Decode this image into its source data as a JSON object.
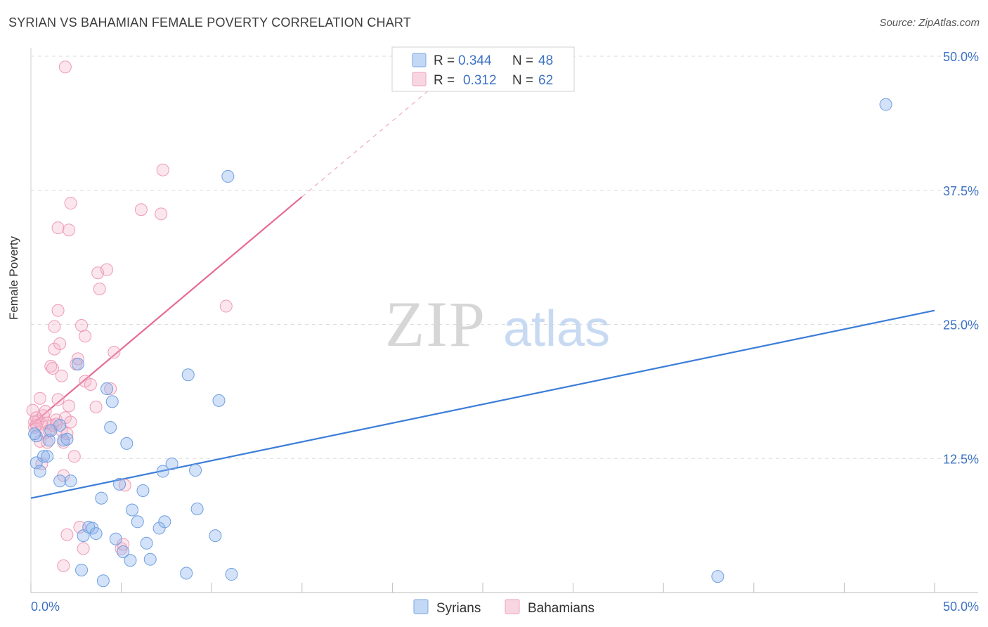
{
  "header": {
    "title": "SYRIAN VS BAHAMIAN FEMALE POVERTY CORRELATION CHART",
    "source": "Source: ZipAtlas.com"
  },
  "watermark": {
    "zip": "ZIP",
    "atlas": "atlas"
  },
  "legend_top": {
    "rows": [
      {
        "r_label": "R =",
        "r_value": "0.344",
        "n_label": "N =",
        "n_value": "48",
        "color": "#7aa9e6"
      },
      {
        "r_label": "R =",
        "r_value": "0.312",
        "n_label": "N =",
        "n_value": "62",
        "color": "#f0a3bc"
      }
    ]
  },
  "legend_bottom": {
    "items": [
      {
        "label": "Syrians",
        "color": "#7aa9e6"
      },
      {
        "label": "Bahamians",
        "color": "#f0a3bc"
      }
    ]
  },
  "chart_data": {
    "type": "scatter",
    "ylabel": "Female Poverty",
    "xlim": [
      0,
      50
    ],
    "ylim": [
      0,
      50
    ],
    "x_tick_labels": [
      "0.0%",
      "50.0%"
    ],
    "y_ticks": [
      12.5,
      25.0,
      37.5,
      50.0
    ],
    "y_tick_labels": [
      "12.5%",
      "25.0%",
      "37.5%",
      "50.0%"
    ],
    "grid": true,
    "legend_position": "top-center",
    "colors": {
      "syrians": "#4f86d9",
      "bahamians": "#e8739a"
    },
    "series": [
      {
        "name": "Syrians",
        "trend": {
          "x": [
            0,
            50
          ],
          "y": [
            8.8,
            26.3
          ]
        },
        "points": [
          [
            0.3,
            14.6
          ],
          [
            0.3,
            12.1
          ],
          [
            0.5,
            11.3
          ],
          [
            0.7,
            12.7
          ],
          [
            0.9,
            12.7
          ],
          [
            1.0,
            14.2
          ],
          [
            1.1,
            15.1
          ],
          [
            1.6,
            15.6
          ],
          [
            1.8,
            14.2
          ],
          [
            2.0,
            14.3
          ],
          [
            1.6,
            10.4
          ],
          [
            2.2,
            10.4
          ],
          [
            2.6,
            21.3
          ],
          [
            2.8,
            2.1
          ],
          [
            2.9,
            5.3
          ],
          [
            3.2,
            6.1
          ],
          [
            3.4,
            6.0
          ],
          [
            3.6,
            5.5
          ],
          [
            3.9,
            8.8
          ],
          [
            4.0,
            1.1
          ],
          [
            4.2,
            19.0
          ],
          [
            4.4,
            15.4
          ],
          [
            4.5,
            17.8
          ],
          [
            4.7,
            5.0
          ],
          [
            4.9,
            10.1
          ],
          [
            5.1,
            3.8
          ],
          [
            5.3,
            13.9
          ],
          [
            5.5,
            3.0
          ],
          [
            5.6,
            7.7
          ],
          [
            5.9,
            6.6
          ],
          [
            6.2,
            9.5
          ],
          [
            6.4,
            4.6
          ],
          [
            6.6,
            3.1
          ],
          [
            7.1,
            6.0
          ],
          [
            7.3,
            11.3
          ],
          [
            7.4,
            6.6
          ],
          [
            7.8,
            12.0
          ],
          [
            8.6,
            1.8
          ],
          [
            8.7,
            20.3
          ],
          [
            9.1,
            11.4
          ],
          [
            9.2,
            7.8
          ],
          [
            10.2,
            5.3
          ],
          [
            10.4,
            17.9
          ],
          [
            10.9,
            38.8
          ],
          [
            11.1,
            1.7
          ],
          [
            38.0,
            1.5
          ],
          [
            47.3,
            45.5
          ],
          [
            0.2,
            14.8
          ]
        ]
      },
      {
        "name": "Bahamians",
        "trend": {
          "x": [
            0,
            15
          ],
          "y": [
            15.6,
            36.9
          ]
        },
        "trend_dash": {
          "x": [
            15,
            22
          ],
          "y": [
            36.9,
            46.8
          ]
        },
        "points": [
          [
            0.1,
            17.0
          ],
          [
            0.2,
            15.9
          ],
          [
            0.2,
            15.4
          ],
          [
            0.3,
            16.3
          ],
          [
            0.4,
            16.0
          ],
          [
            0.5,
            18.1
          ],
          [
            0.5,
            14.1
          ],
          [
            0.6,
            15.7
          ],
          [
            0.6,
            12.0
          ],
          [
            0.7,
            16.5
          ],
          [
            0.8,
            16.9
          ],
          [
            0.8,
            14.9
          ],
          [
            0.9,
            14.0
          ],
          [
            0.9,
            15.8
          ],
          [
            1.0,
            15.1
          ],
          [
            1.1,
            21.1
          ],
          [
            1.2,
            15.6
          ],
          [
            1.2,
            20.9
          ],
          [
            1.3,
            22.7
          ],
          [
            1.3,
            24.8
          ],
          [
            1.4,
            16.1
          ],
          [
            1.5,
            26.3
          ],
          [
            1.5,
            18.0
          ],
          [
            1.5,
            34.0
          ],
          [
            1.6,
            23.2
          ],
          [
            1.7,
            15.1
          ],
          [
            1.7,
            20.2
          ],
          [
            1.8,
            2.5
          ],
          [
            1.8,
            10.9
          ],
          [
            1.8,
            14.0
          ],
          [
            1.9,
            16.3
          ],
          [
            1.9,
            49.0
          ],
          [
            2.0,
            14.8
          ],
          [
            2.0,
            5.4
          ],
          [
            2.1,
            17.4
          ],
          [
            2.1,
            33.8
          ],
          [
            2.2,
            15.9
          ],
          [
            2.2,
            36.3
          ],
          [
            2.4,
            12.7
          ],
          [
            2.5,
            21.3
          ],
          [
            2.6,
            21.8
          ],
          [
            2.7,
            6.1
          ],
          [
            2.8,
            24.9
          ],
          [
            2.9,
            4.1
          ],
          [
            3.0,
            23.9
          ],
          [
            3.0,
            19.7
          ],
          [
            3.3,
            19.4
          ],
          [
            3.6,
            17.3
          ],
          [
            3.7,
            29.8
          ],
          [
            3.8,
            28.3
          ],
          [
            4.2,
            30.1
          ],
          [
            4.4,
            19.0
          ],
          [
            4.6,
            22.4
          ],
          [
            5.0,
            4.1
          ],
          [
            5.1,
            4.5
          ],
          [
            5.2,
            10.0
          ],
          [
            6.1,
            35.7
          ],
          [
            7.2,
            35.3
          ],
          [
            7.3,
            39.4
          ],
          [
            10.8,
            26.7
          ],
          [
            0.3,
            15.6
          ],
          [
            1.4,
            15.7
          ]
        ]
      }
    ]
  }
}
